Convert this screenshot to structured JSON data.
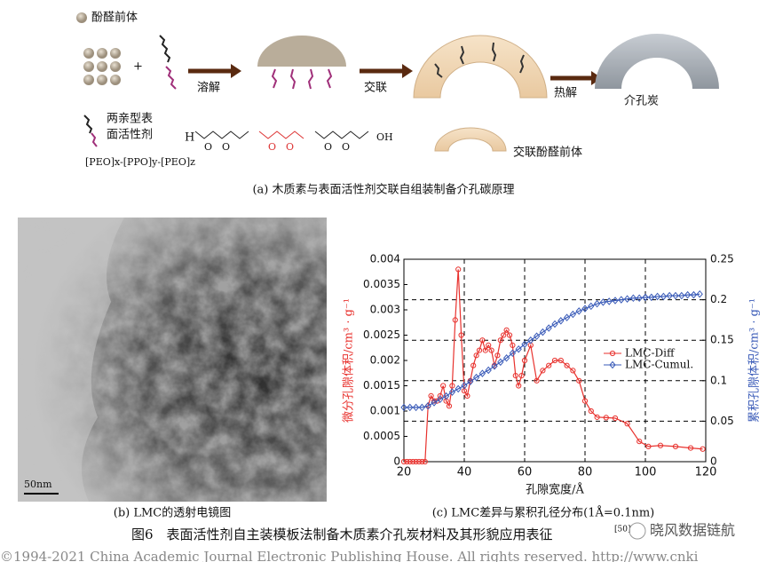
{
  "panel_a": {
    "legend_precursor": "酚醛前体",
    "step_dissolve": "溶解",
    "step_crosslink": "交联",
    "step_pyrolysis": "热解",
    "product": "介孔炭",
    "surfactant_line1": "两亲型表",
    "surfactant_line2": "面活性剂",
    "surfactant_formula": "[PEO]x-[PPO]y-[PEO]z",
    "formula_start": "H",
    "formula_atom": "O",
    "formula_end": "OH",
    "crosslinked_precursor": "交联酚醛前体",
    "caption": "(a) 木质素与表面活性剂交联自组装制备介孔碳原理"
  },
  "panel_b": {
    "scale_bar": "50nm",
    "caption": "(b) LMC的透射电镜图"
  },
  "panel_c": {
    "caption": "(c) LMC差异与累积孔径分布(1Å=0.1nm)"
  },
  "chart_data": {
    "type": "line",
    "x_label": "孔隙宽度/Å",
    "y_label": "微分孔隙体积/cm³ · g⁻¹",
    "y2_label": "累积孔隙体积/cm³ · g⁻¹",
    "xlim": [
      20,
      120
    ],
    "xticks": [
      20,
      40,
      60,
      80,
      100,
      120
    ],
    "ylim": [
      0,
      0.004
    ],
    "yticks": [
      0,
      0.0005,
      0.001,
      0.0015,
      0.002,
      0.0025,
      0.003,
      0.0035,
      0.004
    ],
    "y2lim": [
      0,
      0.25
    ],
    "y2ticks": [
      0,
      0.05,
      0.1,
      0.15,
      0.2,
      0.25
    ],
    "grid": "y2",
    "legend": "right",
    "series": [
      {
        "name": "LMC-Diff",
        "color": "#e8322e",
        "marker": "circle",
        "axis": "y",
        "x": [
          20,
          21,
          22,
          23,
          24,
          25,
          26,
          27,
          28,
          29,
          30,
          31,
          32,
          33,
          34,
          35,
          36,
          37,
          38,
          39,
          40,
          41,
          42,
          43,
          44,
          45,
          46,
          47,
          48,
          49,
          50,
          51,
          52,
          53,
          54,
          55,
          56,
          57,
          58,
          59,
          60,
          62,
          64,
          66,
          68,
          70,
          72,
          74,
          76,
          78,
          80,
          82,
          84,
          87,
          90,
          94,
          98,
          101,
          105,
          110,
          115,
          119
        ],
        "values": [
          0,
          0,
          0,
          0,
          0,
          0,
          0,
          0,
          0.0011,
          0.0013,
          0.0012,
          0.0012,
          0.0013,
          0.0015,
          0.0012,
          0.0011,
          0.0015,
          0.0028,
          0.0038,
          0.0025,
          0.0014,
          0.0013,
          0.0016,
          0.0019,
          0.0021,
          0.0022,
          0.0024,
          0.0022,
          0.0023,
          0.0022,
          0.0019,
          0.0021,
          0.0024,
          0.0025,
          0.0026,
          0.0025,
          0.0023,
          0.0017,
          0.0015,
          0.0017,
          0.002,
          0.0023,
          0.0016,
          0.0018,
          0.0019,
          0.002,
          0.002,
          0.0019,
          0.0018,
          0.0016,
          0.0012,
          0.001,
          0.00088,
          0.00087,
          0.00086,
          0.00075,
          0.0004,
          0.0003,
          0.00032,
          0.0003,
          0.00027,
          0.00025
        ]
      },
      {
        "name": "LMC-Cumul.",
        "color": "#3a5bb8",
        "marker": "diamond",
        "axis": "y2",
        "x": [
          20,
          22,
          24,
          26,
          28,
          30,
          32,
          34,
          36,
          38,
          40,
          42,
          44,
          46,
          48,
          50,
          52,
          54,
          56,
          58,
          60,
          62,
          64,
          66,
          68,
          70,
          72,
          74,
          76,
          78,
          80,
          82,
          84,
          86,
          88,
          90,
          92,
          94,
          96,
          98,
          100,
          102,
          104,
          106,
          108,
          110,
          112,
          114,
          116,
          118
        ],
        "values": [
          0.067,
          0.067,
          0.067,
          0.067,
          0.069,
          0.073,
          0.077,
          0.081,
          0.086,
          0.09,
          0.094,
          0.099,
          0.104,
          0.109,
          0.113,
          0.118,
          0.123,
          0.128,
          0.134,
          0.139,
          0.145,
          0.15,
          0.155,
          0.16,
          0.165,
          0.17,
          0.174,
          0.178,
          0.182,
          0.186,
          0.189,
          0.192,
          0.195,
          0.197,
          0.198,
          0.199,
          0.2,
          0.201,
          0.202,
          0.202,
          0.203,
          0.203,
          0.204,
          0.204,
          0.205,
          0.205,
          0.205,
          0.206,
          0.206,
          0.207
        ]
      }
    ]
  },
  "figure": {
    "caption": "图6　表面活性剂自主装模板法制备木质素介孔炭材料及其形貌应用表征",
    "ref": "[50]",
    "watermark": "晓风数据链航",
    "footer": "©1994-2021 China Academic Journal Electronic Publishing House. All rights reserved.    http://www.cnki"
  }
}
